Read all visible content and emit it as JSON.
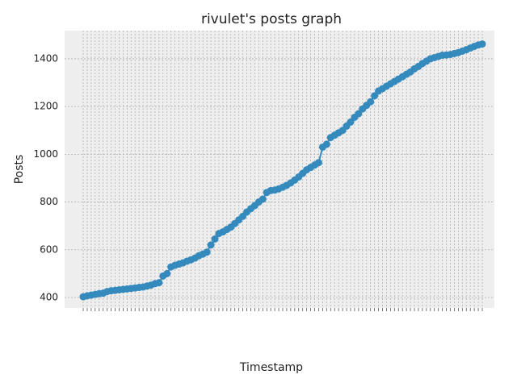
{
  "chart_data": {
    "type": "line",
    "title": "rivulet's posts graph",
    "x_label": "Timestamp",
    "y_label": "Posts",
    "categories": [
      null,
      null,
      null,
      null,
      null,
      null,
      null,
      null,
      null,
      null,
      null,
      null,
      null,
      null,
      null,
      null,
      null,
      null,
      null,
      null,
      null,
      null,
      null,
      null,
      null,
      null,
      null,
      null,
      null,
      null,
      null,
      null,
      null,
      null,
      null,
      null,
      null,
      null,
      null,
      null,
      null,
      null,
      null,
      null,
      null,
      null,
      null,
      null,
      null,
      null,
      null,
      null,
      null,
      null,
      null,
      null,
      null,
      null,
      null,
      null,
      null,
      null,
      null,
      null,
      null,
      null,
      null,
      null,
      null,
      null,
      null,
      null,
      null,
      null,
      null,
      null,
      null,
      null,
      null,
      null,
      null,
      null,
      null,
      null,
      null,
      null,
      null,
      null,
      null,
      null,
      null,
      null,
      null,
      null,
      null,
      null,
      null,
      null,
      null,
      null,
      null
    ],
    "values": [
      403,
      407,
      410,
      413,
      416,
      418,
      425,
      428,
      430,
      432,
      434,
      436,
      438,
      440,
      442,
      444,
      448,
      452,
      458,
      462,
      490,
      500,
      528,
      535,
      540,
      545,
      552,
      558,
      565,
      575,
      582,
      590,
      620,
      645,
      668,
      675,
      685,
      695,
      710,
      725,
      740,
      758,
      772,
      785,
      800,
      812,
      840,
      848,
      850,
      855,
      862,
      870,
      880,
      892,
      905,
      920,
      935,
      945,
      955,
      965,
      1030,
      1042,
      1070,
      1080,
      1090,
      1100,
      1118,
      1135,
      1155,
      1170,
      1190,
      1205,
      1220,
      1245,
      1265,
      1275,
      1285,
      1295,
      1305,
      1315,
      1325,
      1335,
      1345,
      1358,
      1368,
      1380,
      1390,
      1400,
      1405,
      1410,
      1415,
      1416,
      1418,
      1422,
      1426,
      1432,
      1438,
      1445,
      1452,
      1458,
      1462
    ],
    "color": "#348abd",
    "ylim": [
      356,
      1518
    ],
    "yticks": [
      400,
      600,
      800,
      1000,
      1200,
      1400
    ],
    "grid": true
  }
}
